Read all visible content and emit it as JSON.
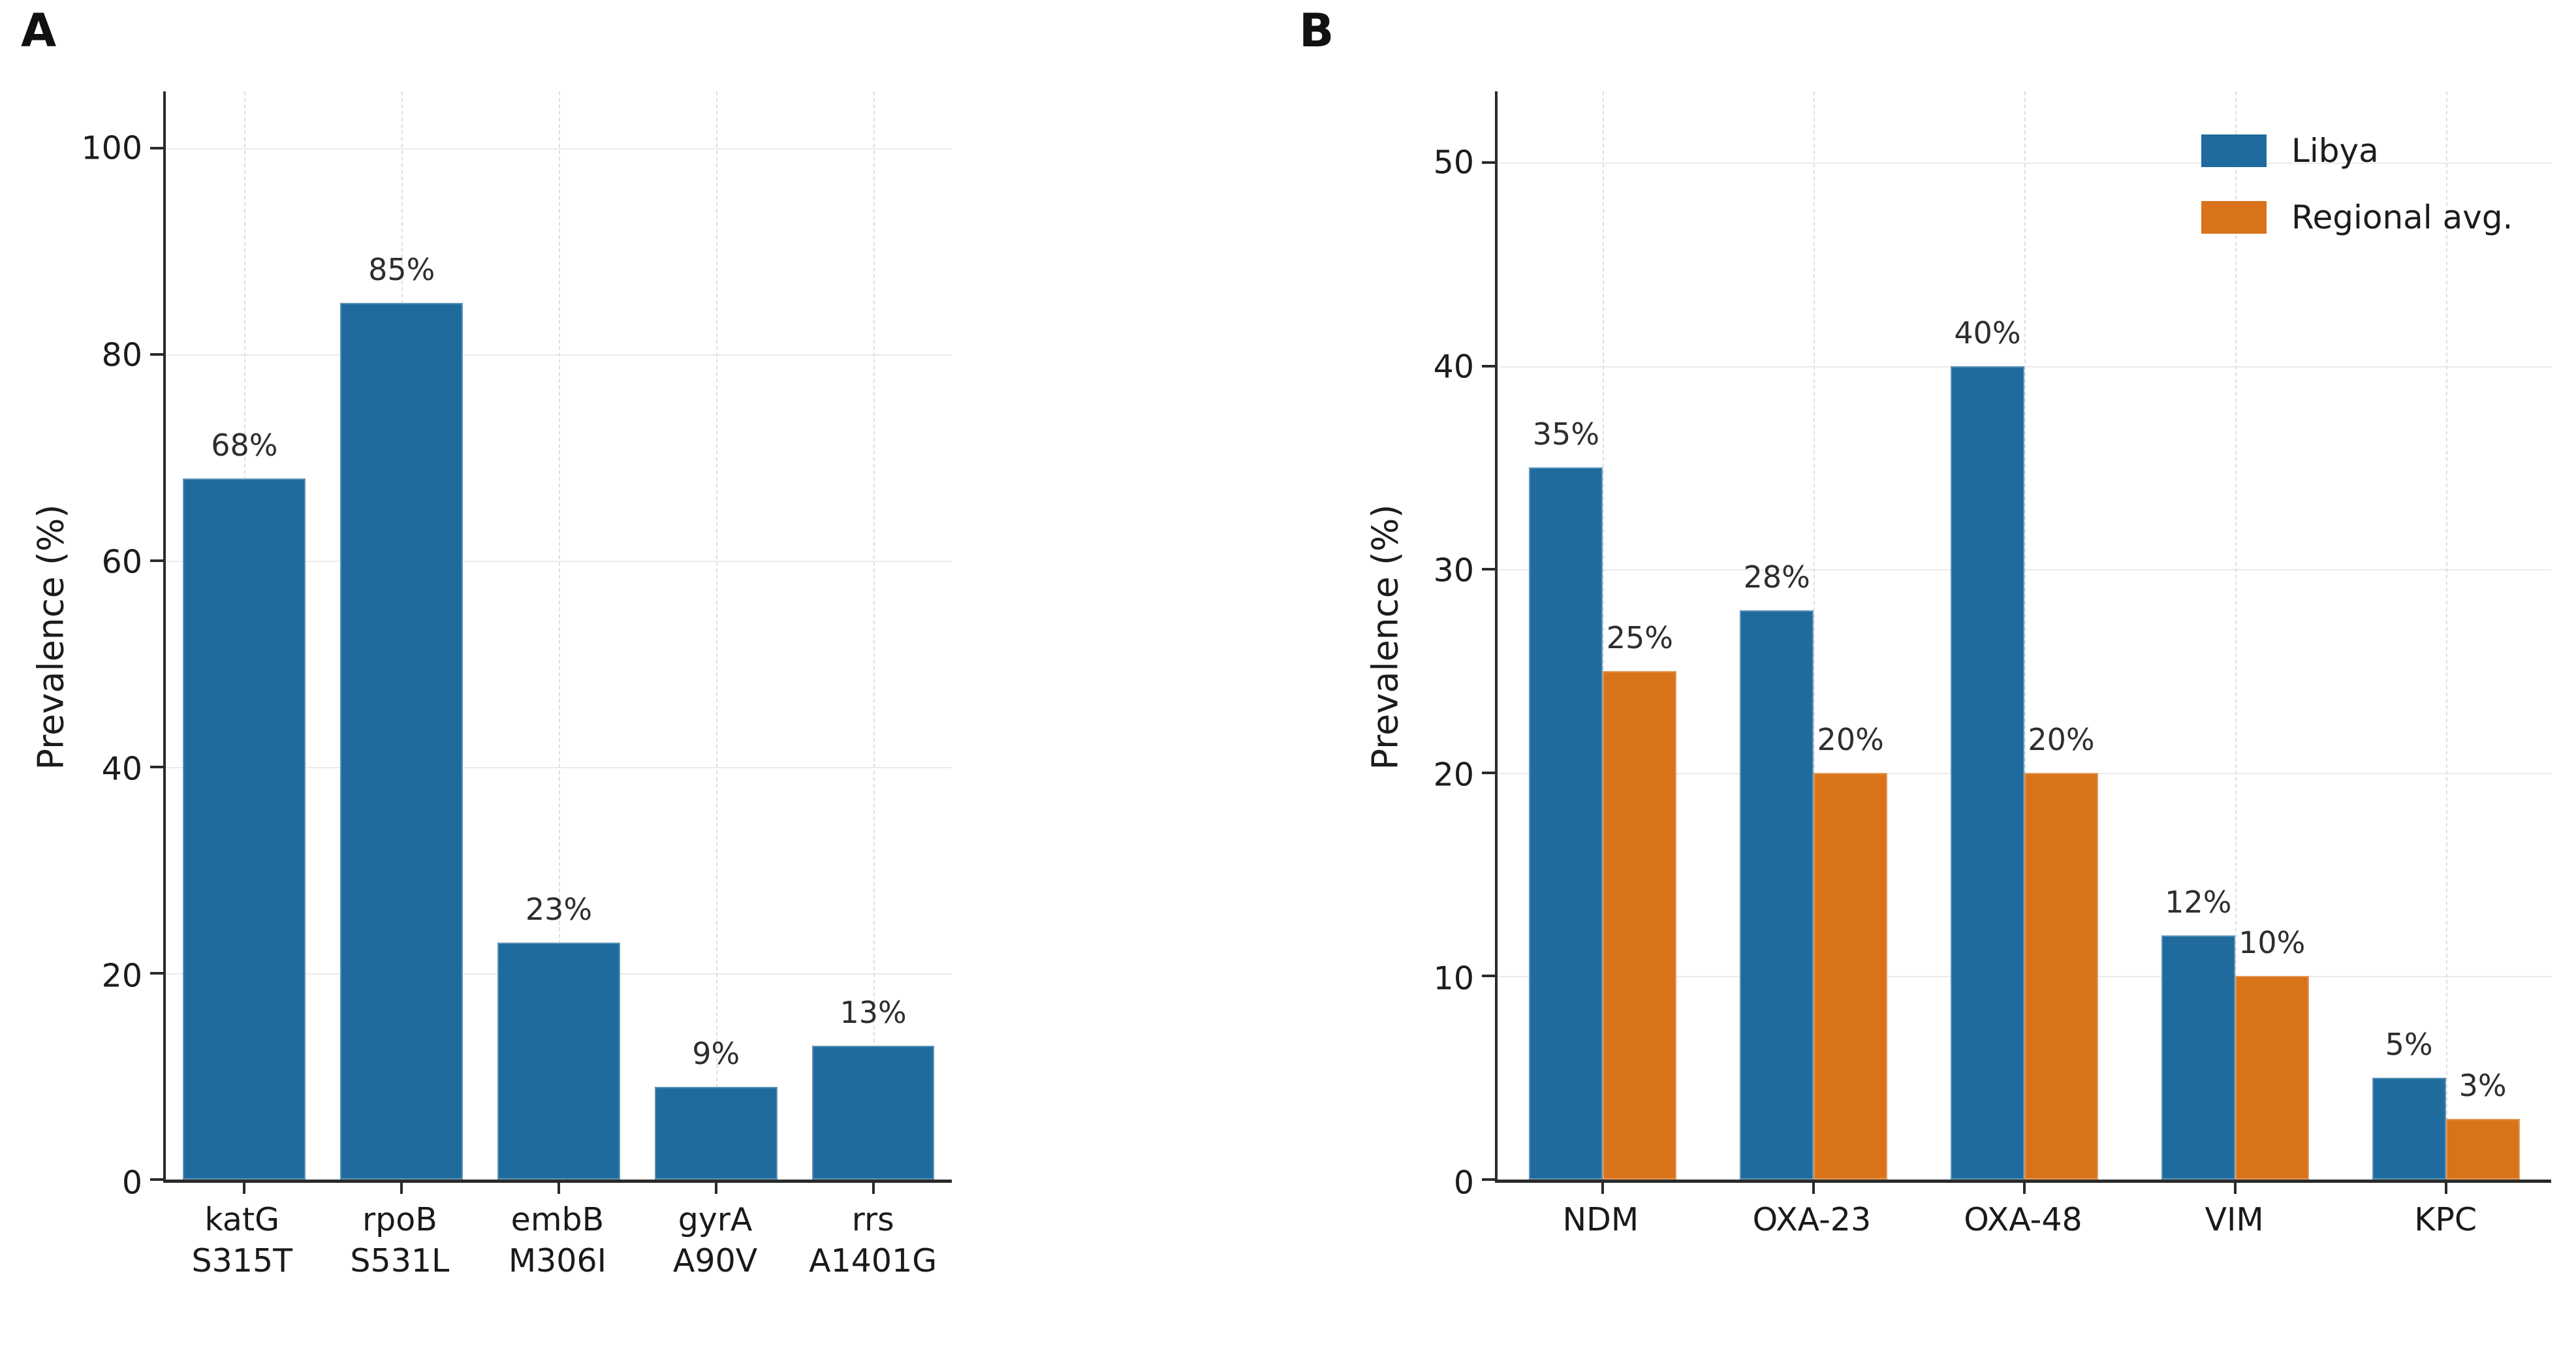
{
  "accent_colors": {
    "libya_blue": "#1f6b9d",
    "regional_orange": "#d9731a"
  },
  "chart_data": [
    {
      "panel": "A",
      "type": "bar",
      "title": "",
      "xlabel": "",
      "ylabel": "Prevalence (%)",
      "categories": [
        "katG\nS315T",
        "rpoB\nS531L",
        "embB\nM306I",
        "gyrA\nA90V",
        "rrs\nA1401G"
      ],
      "values": [
        68,
        85,
        23,
        9,
        13
      ],
      "bar_labels": [
        "68%",
        "85%",
        "23%",
        "9%",
        "13%"
      ],
      "bar_color": "#1f6b9d",
      "yticks": [
        0,
        20,
        40,
        60,
        80,
        100
      ],
      "ylim": [
        0,
        105.5
      ],
      "grid": true,
      "legend": null
    },
    {
      "panel": "B",
      "type": "bar",
      "title": "",
      "xlabel": "",
      "ylabel": "Prevalence (%)",
      "categories": [
        "NDM",
        "OXA-23",
        "OXA-48",
        "VIM",
        "KPC"
      ],
      "series": [
        {
          "name": "Libya",
          "color": "#1f6b9d",
          "values": [
            35,
            28,
            40,
            12,
            5
          ],
          "labels": [
            "35%",
            "28%",
            "40%",
            "12%",
            "5%"
          ]
        },
        {
          "name": "Regional avg.",
          "color": "#d9731a",
          "values": [
            25,
            20,
            20,
            10,
            3
          ],
          "labels": [
            "25%",
            "20%",
            "20%",
            "10%",
            "3%"
          ]
        }
      ],
      "yticks": [
        0,
        10,
        20,
        30,
        40,
        50
      ],
      "ylim": [
        0,
        53.5
      ],
      "grid": true,
      "legend": {
        "position": "upper right",
        "entries": [
          "Libya",
          "Regional avg."
        ]
      }
    }
  ]
}
